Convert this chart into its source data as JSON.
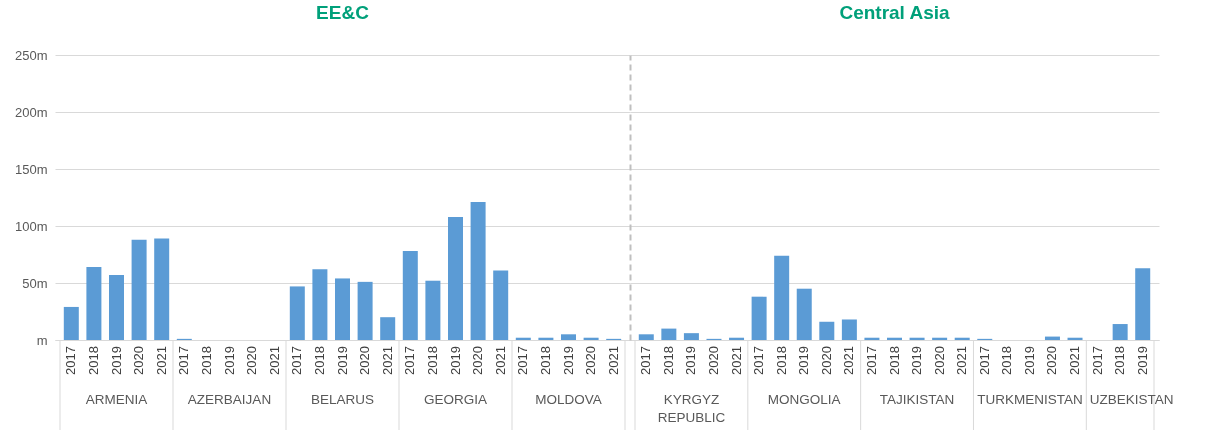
{
  "chart_data": [
    {
      "type": "bar",
      "title": "EE&C",
      "categories": [
        "2017",
        "2018",
        "2019",
        "2020",
        "2021",
        "2017",
        "2018",
        "2019",
        "2020",
        "2021",
        "2017",
        "2018",
        "2019",
        "2020",
        "2021",
        "2017",
        "2018",
        "2019",
        "2020",
        "2021",
        "2017",
        "2018",
        "2019",
        "2020",
        "2021"
      ],
      "values": [
        29,
        64,
        57,
        88,
        89,
        1,
        0,
        0,
        0,
        0,
        47,
        62,
        54,
        51,
        20,
        78,
        52,
        108,
        121,
        61,
        2,
        2,
        5,
        2,
        1
      ],
      "color": "#5b9bd5",
      "annotations": [
        "ARMENIA",
        "AZERBAIJAN",
        "BELARUS",
        "GEORGIA",
        "MOLDOVA"
      ],
      "ylim": [
        0,
        250
      ],
      "yticks": [
        {
          "value": 0,
          "label": "m"
        },
        {
          "value": 50,
          "label": "50m"
        },
        {
          "value": 100,
          "label": "100m"
        },
        {
          "value": 150,
          "label": "150m"
        },
        {
          "value": 200,
          "label": "200m"
        },
        {
          "value": 250,
          "label": "250m"
        }
      ],
      "grid": "y"
    },
    {
      "type": "bar",
      "title": "Central Asia",
      "categories": [
        "2017",
        "2018",
        "2019",
        "2020",
        "2021",
        "2017",
        "2018",
        "2019",
        "2020",
        "2021",
        "2017",
        "2018",
        "2019",
        "2020",
        "2021",
        "2017",
        "2018",
        "2019",
        "2020",
        "2021",
        "2017",
        "2018",
        "2019"
      ],
      "values": [
        5,
        10,
        6,
        1,
        2,
        38,
        74,
        45,
        16,
        18,
        2,
        2,
        2,
        2,
        2,
        1,
        0,
        0,
        3,
        2,
        0,
        14,
        63
      ],
      "color": "#5b9bd5",
      "annotations": [
        "KYRGYZ REPUBLIC",
        "MONGOLIA",
        "TAJIKISTAN",
        "TURKMENISTAN",
        "UZBEKISTAN"
      ],
      "ylim": [
        0,
        250
      ],
      "yticks": [
        0,
        50,
        100,
        150,
        200,
        250
      ],
      "grid": "y",
      "tick_labels": "x"
    }
  ]
}
